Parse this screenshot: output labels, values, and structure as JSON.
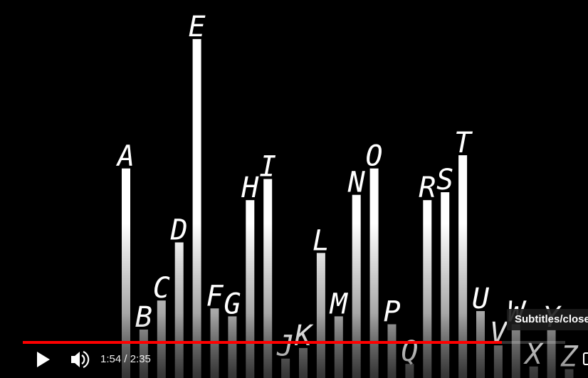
{
  "chart_data": {
    "type": "bar",
    "categories": [
      "A",
      "B",
      "C",
      "D",
      "E",
      "F",
      "G",
      "H",
      "I",
      "J",
      "K",
      "L",
      "M",
      "N",
      "O",
      "P",
      "Q",
      "R",
      "S",
      "T",
      "U",
      "V",
      "W",
      "X",
      "Y",
      "Z"
    ],
    "values": [
      7.8,
      1.7,
      2.8,
      5.0,
      12.7,
      2.5,
      2.2,
      6.6,
      7.4,
      0.6,
      1.0,
      4.6,
      2.2,
      6.8,
      7.8,
      1.9,
      0.4,
      6.6,
      6.9,
      8.3,
      2.4,
      1.1,
      1.9,
      0.3,
      1.7,
      0.2
    ],
    "color": "#ffffff"
  },
  "player": {
    "time": "1:54 / 2:35",
    "tooltip": "Subtitles/closed captions"
  }
}
